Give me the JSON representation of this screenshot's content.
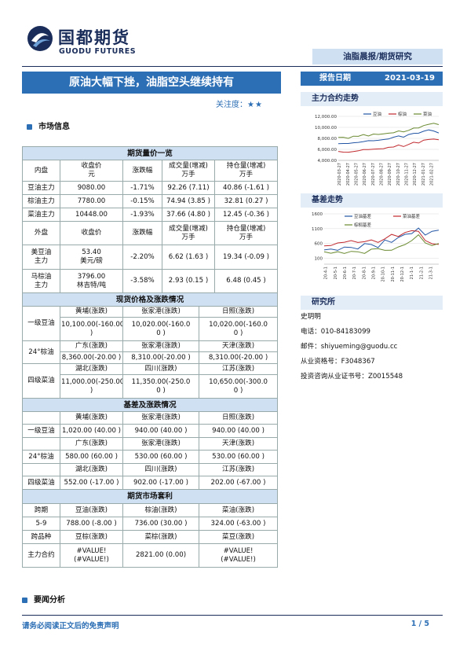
{
  "brand": {
    "name_cn": "国都期货",
    "name_en": "GUODU FUTURES",
    "color": "#1a2d5a",
    "accent": "#2d6fb5"
  },
  "report_type": "油脂晨报/期货研究",
  "title": "原油大幅下挫，油脂空头继续持有",
  "attention": {
    "label": "关注度：",
    "stars": "★★"
  },
  "report_date": {
    "label": "报告日期",
    "value": "2021-03-19"
  },
  "market_info": "市场信息",
  "main_contract_trend": "主力合约走势",
  "basis_trend": "基差走势",
  "news_analysis": "要闻分析",
  "table": {
    "futures_title": "期货量价一览",
    "h1": [
      "内盘",
      "收盘价",
      "元",
      "涨跌幅",
      "成交量(增减)",
      "万手",
      "持仓量(增减)",
      "万手"
    ],
    "domestic": [
      [
        "豆油主力",
        "9080.00",
        "-1.71%",
        "92.26 (7.11)",
        "40.86 (-1.61 )"
      ],
      [
        "棕油主力",
        "7780.00",
        "-0.15%",
        "74.94 (3.85 )",
        "32.81 (0.27 )"
      ],
      [
        "菜油主力",
        "10448.00",
        "-1.93%",
        "37.66 (4.80 )",
        "12.45 (-0.36 )"
      ]
    ],
    "h2": [
      "外盘",
      "收盘价",
      "涨跌幅",
      "成交量(增减)",
      "万手",
      "持仓量(增减)",
      "万手"
    ],
    "foreign": [
      {
        "name": [
          "美豆油",
          "主力"
        ],
        "price": [
          "53.40",
          "美元/磅"
        ],
        "chg": "-2.20%",
        "vol": "6.62 (1.63 )",
        "oi": "19.34 (-0.09 )"
      },
      {
        "name": [
          "马棕油",
          "主力"
        ],
        "price": [
          "3796.00",
          "林吉特/吨"
        ],
        "chg": "-3.58%",
        "vol": "2.93 (0.15 )",
        "oi": "6.48 (0.45 )"
      }
    ],
    "spot_title": "现货价格及涨跌情况",
    "spot": [
      {
        "name": "一级豆油",
        "regions": [
          "黄埔(涨跌)",
          "张家港(涨跌)",
          "日照(涨跌)"
        ],
        "values": [
          [
            "10,100.00(-160.00",
            ")"
          ],
          [
            "10,020.00(-160.0",
            "0 )"
          ],
          [
            "10,020.00(-160.0",
            "0 )"
          ]
        ]
      },
      {
        "name": "24°棕油",
        "regions": [
          "广东(涨跌)",
          "张家港(涨跌)",
          "天津(涨跌)"
        ],
        "values": [
          [
            "8,360.00(-20.00 )"
          ],
          [
            "8,310.00(-20.00 )"
          ],
          [
            "8,310.00(-20.00 )"
          ]
        ]
      },
      {
        "name": "四级菜油",
        "regions": [
          "湖北(涨跌)",
          "四川(涨跌)",
          "江苏(涨跌)"
        ],
        "values": [
          [
            "11,000.00(-250.00",
            ")"
          ],
          [
            "11,350.00(-250.0",
            "0 )"
          ],
          [
            "10,650.00(-300.0",
            "0 )"
          ]
        ]
      }
    ],
    "basis_title": "基差及涨跌情况",
    "basis": [
      {
        "name": "一级豆油",
        "regions": [
          "黄埔(涨跌)",
          "张家港(涨跌)",
          "日照(涨跌)"
        ],
        "values": [
          "1,020.00 (40.00 )",
          "940.00 (40.00 )",
          "940.00 (40.00 )"
        ]
      },
      {
        "name": "24°棕油",
        "regions": [
          "广东(涨跌)",
          "张家港(涨跌)",
          "天津(涨跌)"
        ],
        "values": [
          "580.00 (60.00 )",
          "530.00 (60.00 )",
          "530.00 (60.00 )"
        ]
      },
      {
        "name": "四级菜油",
        "regions": [
          "湖北(涨跌)",
          "四川(涨跌)",
          "江苏(涨跌)"
        ],
        "values": [
          "552.00 (-17.00 )",
          "902.00 (-17.00 )",
          "202.00 (-67.00 )"
        ]
      }
    ],
    "arb_title": "期货市场套利",
    "arb_h": [
      "跨期",
      "豆油(涨跌)",
      "棕油(涨跌)",
      "菜油(涨跌)"
    ],
    "arb_row": [
      "5-9",
      "788.00 (-8.00 )",
      "736.00 (30.00 )",
      "324.00 (-63.00 )"
    ],
    "cross_h": [
      "跨品种",
      "豆棕(涨跌)",
      "菜棕(涨跌)",
      "菜豆(涨跌)"
    ],
    "cross_row": {
      "name": "主力合约",
      "a": [
        "#VALUE!",
        "(#VALUE!)"
      ],
      "b": "2821.00   (0.00)",
      "c": [
        "#VALUE!",
        "(#VALUE!)"
      ]
    }
  },
  "researcher": {
    "heading": "研究所",
    "name": "史玥明",
    "phone": "电话：010-84183099",
    "email": "邮件：shiyueming@guodu.cc",
    "cert": "从业资格号：F3048367",
    "advisor": "投资咨询从业证书号：Z0015548"
  },
  "footer": {
    "disclaimer": "请务必阅读正文后的免责声明",
    "page": "1 / 5"
  },
  "chart_data": [
    {
      "type": "line",
      "series": [
        {
          "name": "豆油",
          "color": "#2255a4",
          "values": [
            7050,
            7120,
            6980,
            7300,
            7200,
            7450,
            7600,
            7500,
            7750,
            7700,
            7950,
            8200,
            8400,
            8300,
            8600,
            9000,
            8900,
            9300,
            9600,
            9250,
            9080
          ]
        },
        {
          "name": "棕油",
          "color": "#c0282d",
          "values": [
            5550,
            5600,
            5400,
            5650,
            5750,
            5900,
            6050,
            5950,
            6150,
            6100,
            6350,
            6500,
            6700,
            6600,
            6850,
            7300,
            7200,
            7600,
            7900,
            7800,
            7780
          ]
        },
        {
          "name": "菜油",
          "color": "#6a8a30",
          "values": [
            8100,
            8250,
            8000,
            8350,
            8450,
            8600,
            8500,
            8750,
            8700,
            8900,
            8850,
            9100,
            9300,
            9200,
            9500,
            9800,
            10000,
            10250,
            10600,
            10750,
            10448
          ]
        }
      ],
      "yticks": [
        "4,000.00",
        "6,000.00",
        "8,000.00",
        "10,000.00",
        "12,000.00"
      ],
      "ylim": [
        4000,
        12000
      ],
      "xticks": [
        "2020-03-27",
        "2020-04-27",
        "2020-05-27",
        "2020-06-27",
        "2020-07-27",
        "2020-08-27",
        "2020-09-27",
        "2020-10-27",
        "2020-11-27",
        "2020-12-27",
        "2021-01-27",
        "2021-02-27"
      ]
    },
    {
      "type": "line",
      "series": [
        {
          "name": "豆油基差",
          "color": "#2255a4",
          "values": [
            380,
            420,
            350,
            500,
            450,
            420,
            600,
            550,
            480,
            700,
            650,
            800,
            900,
            950,
            1100,
            900,
            1000,
            1050
          ]
        },
        {
          "name": "菜油基差",
          "color": "#c0282d",
          "values": [
            500,
            550,
            600,
            650,
            700,
            620,
            680,
            700,
            650,
            750,
            900,
            850,
            950,
            1050,
            1000,
            700,
            600,
            550
          ]
        },
        {
          "name": "棕榈基差",
          "color": "#6a8a30",
          "values": [
            300,
            280,
            320,
            250,
            350,
            300,
            280,
            400,
            420,
            380,
            350,
            500,
            550,
            700,
            900,
            600,
            550,
            580
          ]
        }
      ],
      "yticks": [
        "100",
        "600",
        "1100",
        "1600"
      ],
      "ylim": [
        -100,
        1600
      ],
      "xticks": [
        "20-4-1",
        "20-5-1",
        "20-6-1",
        "20-7-1",
        "20-8-1",
        "20-9-1",
        "20-10-1",
        "20-11-1",
        "20-12-1",
        "21-1-1",
        "21-2-1",
        "21-3-1"
      ]
    }
  ]
}
